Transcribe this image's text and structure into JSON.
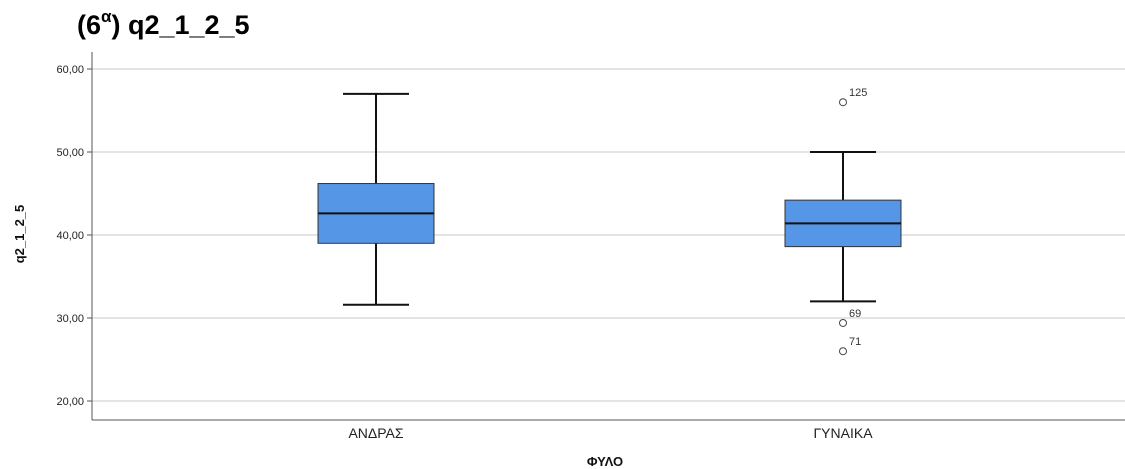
{
  "title_main": "(6",
  "title_sup": "α",
  "title_rest": ") q2_1_2_5",
  "chart_data": {
    "type": "boxplot",
    "xlabel": "ΦΥΛΟ",
    "ylabel": "q2_1_2_5",
    "ylim": [
      19,
      62
    ],
    "yticks": [
      20,
      30,
      40,
      50,
      60
    ],
    "ytick_labels": [
      "20,00",
      "30,00",
      "40,00",
      "50,00",
      "60,00"
    ],
    "grid": true,
    "categories": [
      "ΑΝΔΡΑΣ",
      "ΓΥΝΑΙΚΑ"
    ],
    "boxes": [
      {
        "category": "ΑΝΔΡΑΣ",
        "whisker_low": 31.6,
        "q1": 39.0,
        "median": 42.6,
        "q3": 46.2,
        "whisker_high": 57.0,
        "outliers": []
      },
      {
        "category": "ΓΥΝΑΙΚΑ",
        "whisker_low": 32.0,
        "q1": 38.6,
        "median": 41.4,
        "q3": 44.2,
        "whisker_high": 50.0,
        "outliers": [
          {
            "value": 56.0,
            "label": "125"
          },
          {
            "value": 29.4,
            "label": "69"
          },
          {
            "value": 26.0,
            "label": "71"
          }
        ]
      }
    ],
    "box_color": "#5596e6"
  }
}
